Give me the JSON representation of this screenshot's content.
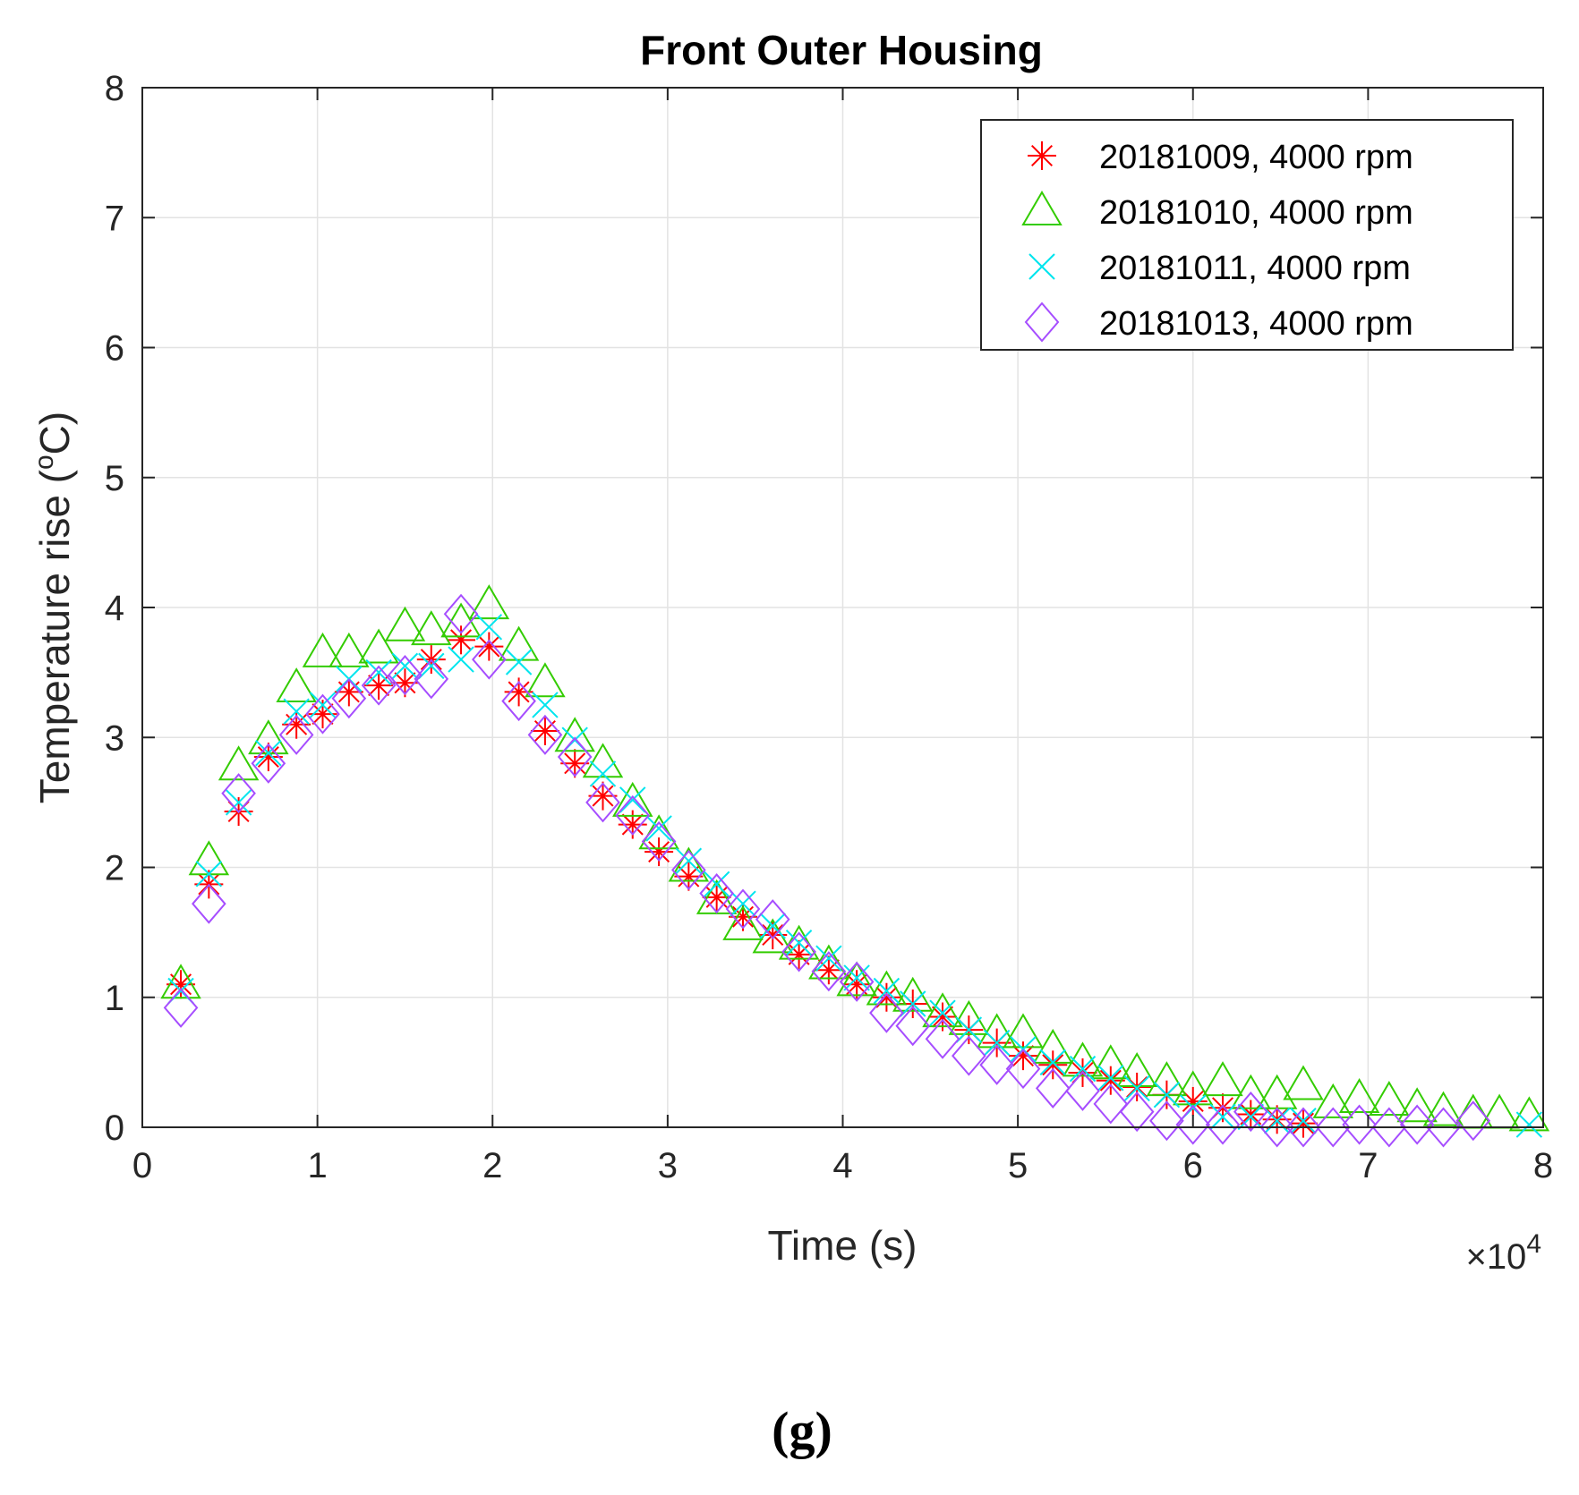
{
  "caption": "(g)",
  "chart_data": {
    "type": "scatter",
    "title": "Front Outer Housing",
    "xlabel": "Time (s)",
    "ylabel": "Temperature rise (°C)",
    "ylabel_main": "Temperature rise (",
    "ylabel_deg": "o",
    "ylabel_unit": "C)",
    "x_exponent_base": "×10",
    "x_exponent_power": "4",
    "xlim": [
      0,
      8
    ],
    "ylim": [
      0,
      8
    ],
    "xticks": [
      "0",
      "1",
      "2",
      "3",
      "4",
      "5",
      "6",
      "7",
      "8"
    ],
    "yticks": [
      "0",
      "1",
      "2",
      "3",
      "4",
      "5",
      "6",
      "7",
      "8"
    ],
    "grid": true,
    "legend_position": "top-right",
    "x_units_note": "x values in units of 10^4 s",
    "series": [
      {
        "name": "20181009, 4000 rpm",
        "marker": "asterisk",
        "color": "#ff0000",
        "x": [
          0.22,
          0.38,
          0.55,
          0.72,
          0.88,
          1.03,
          1.18,
          1.35,
          1.5,
          1.65,
          1.82,
          1.98,
          2.15,
          2.3,
          2.47,
          2.63,
          2.8,
          2.95,
          3.12,
          3.28,
          3.43,
          3.6,
          3.75,
          3.92,
          4.08,
          4.25,
          4.4,
          4.57,
          4.72,
          4.88,
          5.03,
          5.2,
          5.37,
          5.53,
          5.68,
          5.85,
          6.0,
          6.17,
          6.33,
          6.48,
          6.63
        ],
        "y": [
          1.1,
          1.87,
          2.43,
          2.85,
          3.1,
          3.18,
          3.35,
          3.4,
          3.42,
          3.6,
          3.75,
          3.7,
          3.35,
          3.05,
          2.8,
          2.55,
          2.33,
          2.12,
          1.93,
          1.77,
          1.62,
          1.48,
          1.33,
          1.21,
          1.1,
          1.0,
          0.95,
          0.85,
          0.75,
          0.65,
          0.55,
          0.48,
          0.42,
          0.36,
          0.31,
          0.25,
          0.2,
          0.15,
          0.1,
          0.06,
          0.03
        ]
      },
      {
        "name": "20181010, 4000 rpm",
        "marker": "triangle",
        "color": "#33cc00",
        "x": [
          0.22,
          0.38,
          0.55,
          0.72,
          0.88,
          1.03,
          1.18,
          1.35,
          1.5,
          1.65,
          1.82,
          1.98,
          2.15,
          2.3,
          2.47,
          2.63,
          2.8,
          2.95,
          3.12,
          3.28,
          3.43,
          3.6,
          3.75,
          3.92,
          4.08,
          4.25,
          4.4,
          4.57,
          4.72,
          4.88,
          5.03,
          5.2,
          5.37,
          5.53,
          5.68,
          5.85,
          6.0,
          6.17,
          6.33,
          6.48,
          6.63,
          6.8,
          6.95,
          7.12,
          7.28,
          7.43,
          7.6,
          7.75,
          7.92
        ],
        "y": [
          1.1,
          2.05,
          2.78,
          2.98,
          3.38,
          3.65,
          3.65,
          3.68,
          3.85,
          3.82,
          3.88,
          4.02,
          3.7,
          3.42,
          3.0,
          2.8,
          2.5,
          2.25,
          2.0,
          1.75,
          1.55,
          1.45,
          1.4,
          1.25,
          1.12,
          1.05,
          1.0,
          0.88,
          0.82,
          0.72,
          0.72,
          0.6,
          0.5,
          0.48,
          0.42,
          0.35,
          0.28,
          0.35,
          0.25,
          0.25,
          0.32,
          0.18,
          0.22,
          0.2,
          0.15,
          0.12,
          0.1,
          0.1,
          0.08
        ]
      },
      {
        "name": "20181011, 4000 rpm",
        "marker": "x",
        "color": "#00e5ee",
        "x": [
          0.22,
          0.38,
          0.55,
          0.72,
          0.88,
          1.03,
          1.18,
          1.35,
          1.5,
          1.65,
          1.82,
          1.98,
          2.15,
          2.3,
          2.47,
          2.63,
          2.8,
          2.95,
          3.12,
          3.28,
          3.43,
          3.6,
          3.75,
          3.92,
          4.08,
          4.25,
          4.4,
          4.57,
          4.72,
          4.88,
          5.03,
          5.2,
          5.37,
          5.53,
          5.68,
          5.85,
          6.0,
          6.17,
          6.33,
          6.48,
          6.63,
          7.92
        ],
        "y": [
          1.05,
          1.95,
          2.5,
          2.88,
          3.2,
          3.25,
          3.45,
          3.5,
          3.55,
          3.55,
          3.6,
          3.85,
          3.58,
          3.25,
          2.98,
          2.72,
          2.52,
          2.3,
          2.05,
          1.87,
          1.72,
          1.55,
          1.42,
          1.3,
          1.15,
          1.05,
          0.95,
          0.88,
          0.75,
          0.65,
          0.6,
          0.5,
          0.45,
          0.38,
          0.3,
          0.25,
          0.15,
          0.08,
          0.08,
          0.05,
          0.05,
          0.02
        ]
      },
      {
        "name": "20181013, 4000 rpm",
        "marker": "diamond",
        "color": "#a64dff",
        "x": [
          0.22,
          0.38,
          0.55,
          0.72,
          0.88,
          1.03,
          1.18,
          1.35,
          1.5,
          1.65,
          1.82,
          1.98,
          2.15,
          2.3,
          2.47,
          2.63,
          2.8,
          2.95,
          3.12,
          3.28,
          3.43,
          3.6,
          3.75,
          3.92,
          4.08,
          4.25,
          4.4,
          4.57,
          4.72,
          4.88,
          5.03,
          5.2,
          5.37,
          5.53,
          5.68,
          5.85,
          6.0,
          6.17,
          6.33,
          6.48,
          6.63,
          6.8,
          6.95,
          7.12,
          7.28,
          7.43,
          7.6
        ],
        "y": [
          0.92,
          1.72,
          2.57,
          2.8,
          3.02,
          3.18,
          3.3,
          3.4,
          3.48,
          3.45,
          3.95,
          3.6,
          3.28,
          3.02,
          2.85,
          2.5,
          2.4,
          2.2,
          1.98,
          1.8,
          1.68,
          1.6,
          1.35,
          1.2,
          1.12,
          0.88,
          0.78,
          0.68,
          0.55,
          0.48,
          0.45,
          0.3,
          0.28,
          0.18,
          0.12,
          0.05,
          0.02,
          0.02,
          0.12,
          0.0,
          0.0,
          0.0,
          0.02,
          0.0,
          0.02,
          0.0,
          0.05
        ]
      }
    ]
  }
}
